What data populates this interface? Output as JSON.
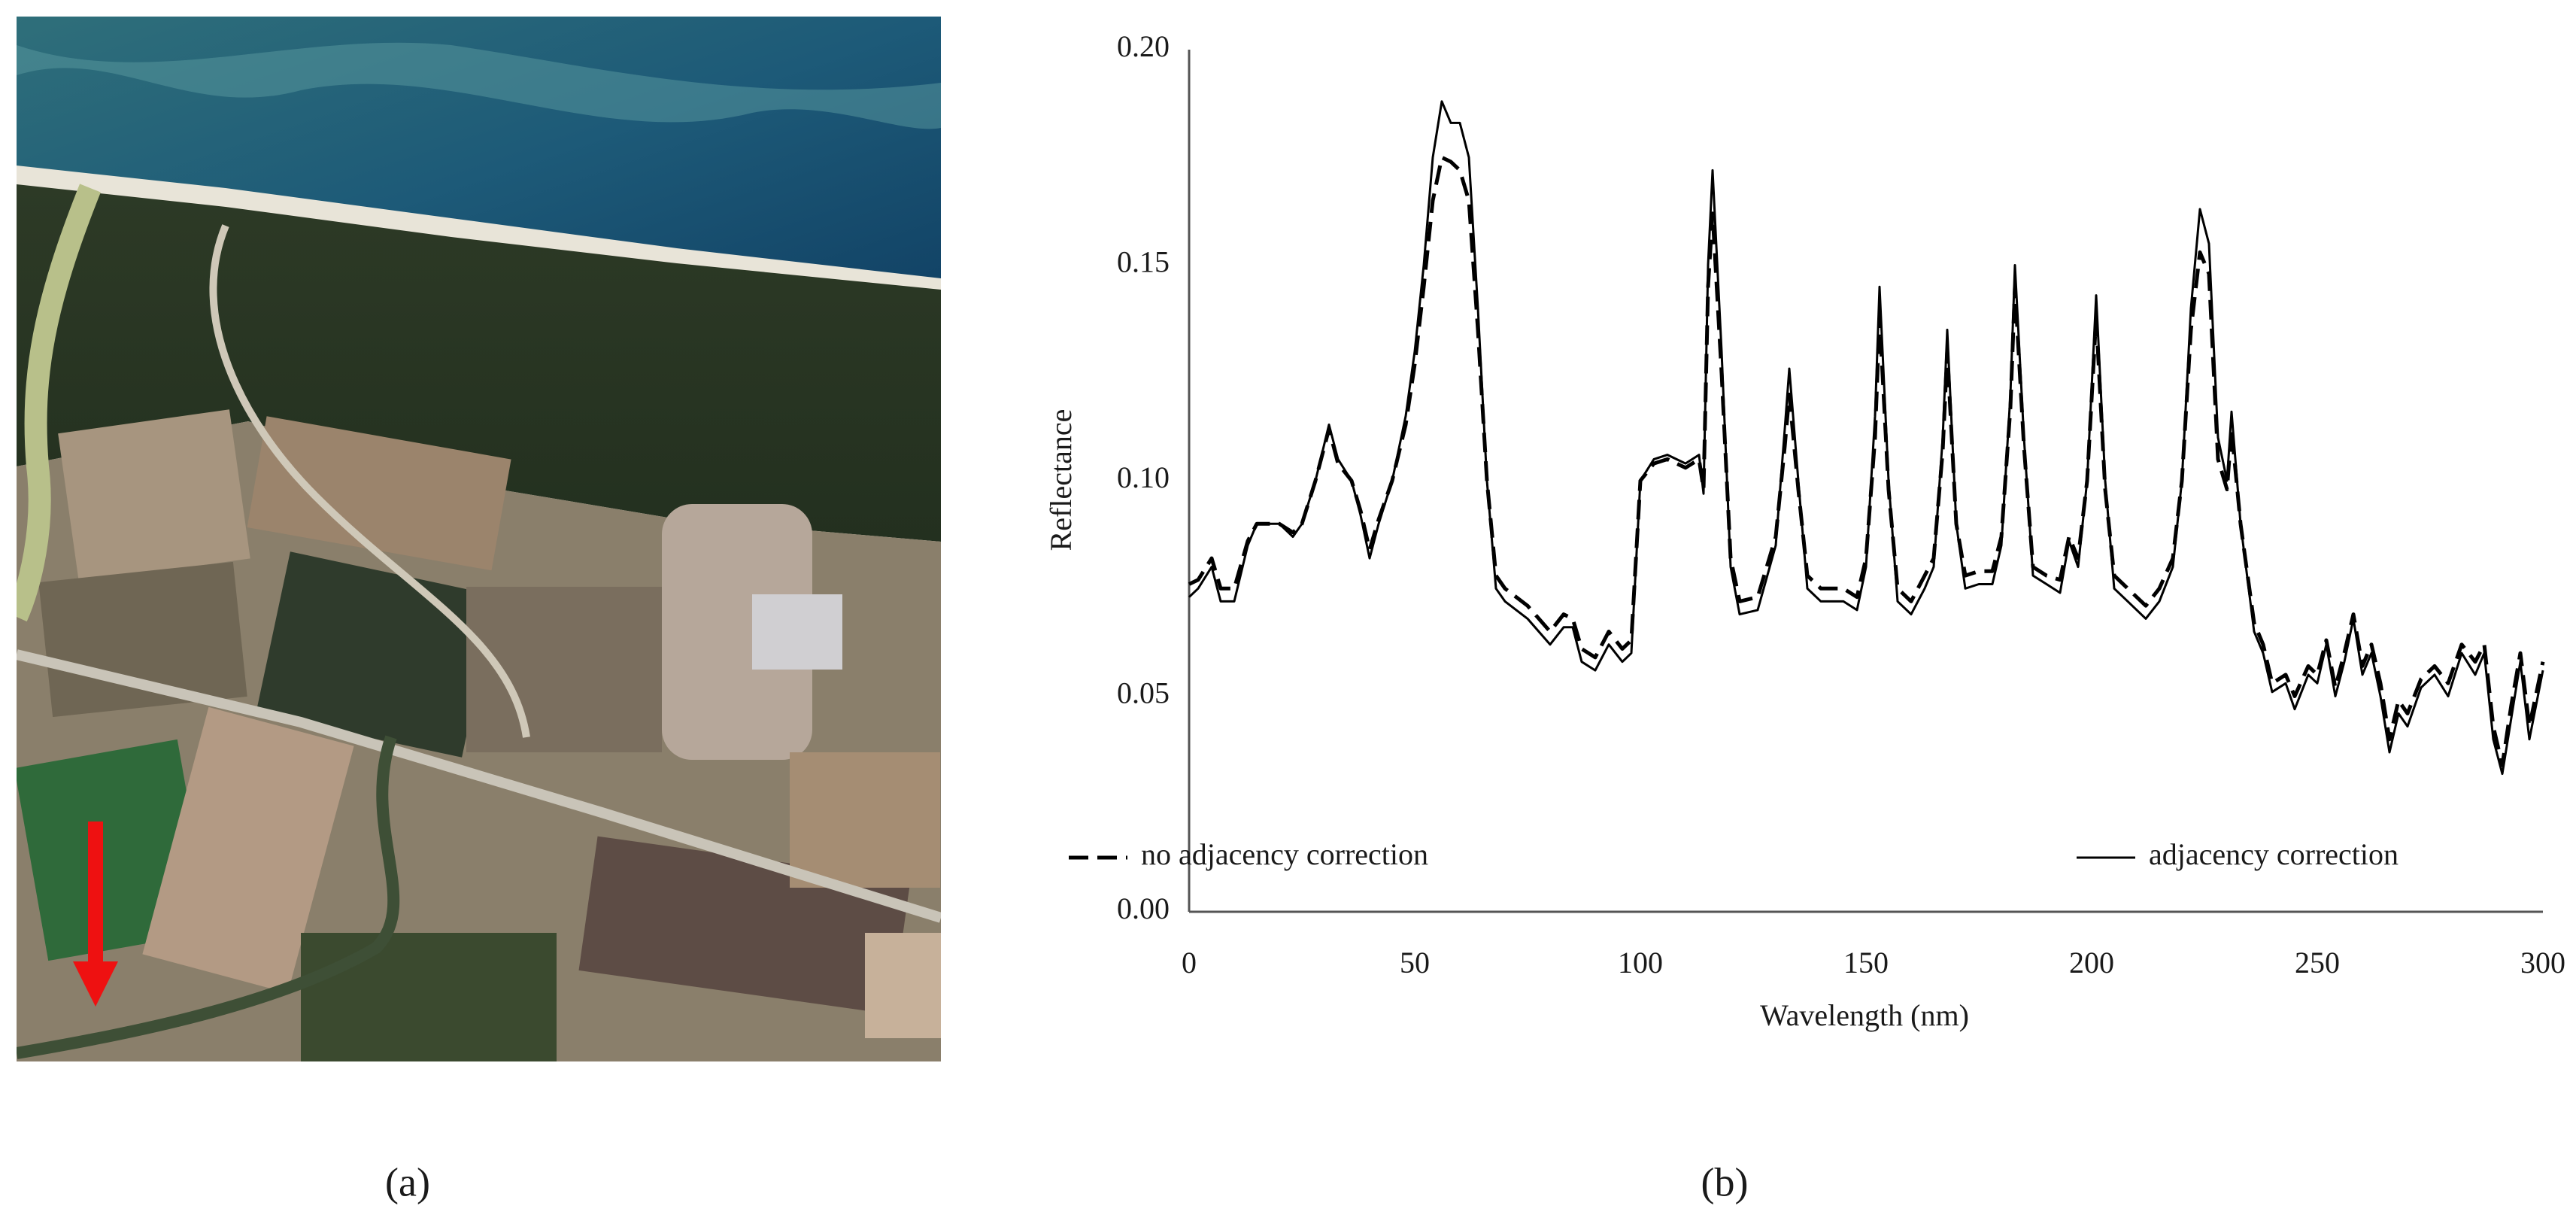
{
  "panel_labels": [
    "(a)",
    "(b)"
  ],
  "chart_data": {
    "type": "line",
    "x_label": "Wavelength (nm)",
    "y_label": "Reflectance",
    "xlim": [
      0,
      300
    ],
    "xticks": [
      0,
      50,
      100,
      150,
      200,
      250,
      300
    ],
    "ylim": [
      0,
      0.2
    ],
    "yticks": [
      {
        "value": 0,
        "label": "0.00"
      },
      {
        "value": 0.05,
        "label": "0.05"
      },
      {
        "value": 0.1,
        "label": "0.10"
      },
      {
        "value": 0.15,
        "label": "0.15"
      },
      {
        "value": 0.2,
        "label": "0.20"
      }
    ],
    "grid": false,
    "legend": "lower center",
    "x": [
      0,
      2,
      5,
      7,
      10,
      13,
      15,
      18,
      20,
      23,
      25,
      28,
      31,
      33,
      36,
      38,
      40,
      42,
      45,
      48,
      50,
      52,
      54,
      56,
      58,
      60,
      62,
      64,
      66,
      68,
      70,
      75,
      80,
      83,
      85,
      87,
      90,
      93,
      96,
      98,
      100,
      103,
      106,
      110,
      113,
      114,
      115,
      116,
      118,
      120,
      122,
      126,
      130,
      132,
      133,
      135,
      137,
      140,
      145,
      148,
      150,
      152,
      153,
      155,
      157,
      160,
      163,
      165,
      167,
      168,
      170,
      172,
      175,
      178,
      180,
      182,
      183,
      185,
      187,
      190,
      193,
      195,
      197,
      199,
      201,
      203,
      205,
      208,
      212,
      215,
      218,
      220,
      222,
      224,
      226,
      228,
      230,
      231,
      233,
      236,
      238,
      240,
      243,
      245,
      248,
      250,
      252,
      254,
      256,
      258,
      260,
      262,
      264,
      266,
      268,
      270,
      273,
      276,
      279,
      282,
      285,
      287,
      289,
      291,
      293,
      295,
      297,
      300
    ],
    "series": [
      {
        "name": "no adjacency correction",
        "color": "#000000",
        "line_style": "dashed",
        "values": [
          0.076,
          0.077,
          0.082,
          0.075,
          0.075,
          0.086,
          0.09,
          0.09,
          0.09,
          0.088,
          0.09,
          0.1,
          0.112,
          0.104,
          0.1,
          0.093,
          0.084,
          0.091,
          0.1,
          0.113,
          0.127,
          0.145,
          0.165,
          0.175,
          0.174,
          0.172,
          0.165,
          0.135,
          0.1,
          0.078,
          0.075,
          0.071,
          0.065,
          0.069,
          0.068,
          0.061,
          0.059,
          0.065,
          0.061,
          0.063,
          0.1,
          0.104,
          0.105,
          0.103,
          0.105,
          0.098,
          0.145,
          0.162,
          0.125,
          0.082,
          0.072,
          0.073,
          0.087,
          0.108,
          0.12,
          0.098,
          0.078,
          0.075,
          0.075,
          0.073,
          0.082,
          0.11,
          0.138,
          0.098,
          0.075,
          0.072,
          0.078,
          0.082,
          0.107,
          0.13,
          0.09,
          0.078,
          0.079,
          0.079,
          0.087,
          0.117,
          0.145,
          0.108,
          0.08,
          0.078,
          0.077,
          0.087,
          0.082,
          0.1,
          0.138,
          0.098,
          0.078,
          0.075,
          0.071,
          0.075,
          0.082,
          0.1,
          0.135,
          0.153,
          0.148,
          0.105,
          0.098,
          0.112,
          0.09,
          0.067,
          0.062,
          0.053,
          0.055,
          0.05,
          0.057,
          0.055,
          0.063,
          0.052,
          0.06,
          0.069,
          0.057,
          0.062,
          0.053,
          0.04,
          0.049,
          0.046,
          0.054,
          0.057,
          0.053,
          0.062,
          0.058,
          0.062,
          0.043,
          0.034,
          0.048,
          0.06,
          0.043,
          0.058
        ]
      },
      {
        "name": "adjacency correction",
        "color": "#000000",
        "line_style": "solid",
        "values": [
          0.073,
          0.075,
          0.08,
          0.072,
          0.072,
          0.085,
          0.09,
          0.09,
          0.09,
          0.087,
          0.09,
          0.1,
          0.113,
          0.105,
          0.1,
          0.092,
          0.082,
          0.09,
          0.1,
          0.115,
          0.13,
          0.15,
          0.175,
          0.188,
          0.183,
          0.183,
          0.175,
          0.14,
          0.1,
          0.075,
          0.072,
          0.068,
          0.062,
          0.066,
          0.066,
          0.058,
          0.056,
          0.062,
          0.058,
          0.06,
          0.1,
          0.105,
          0.106,
          0.104,
          0.106,
          0.097,
          0.15,
          0.172,
          0.13,
          0.08,
          0.069,
          0.07,
          0.085,
          0.112,
          0.126,
          0.1,
          0.075,
          0.072,
          0.072,
          0.07,
          0.08,
          0.115,
          0.145,
          0.1,
          0.072,
          0.069,
          0.075,
          0.08,
          0.11,
          0.135,
          0.09,
          0.075,
          0.076,
          0.076,
          0.085,
          0.12,
          0.15,
          0.11,
          0.078,
          0.076,
          0.074,
          0.086,
          0.08,
          0.1,
          0.143,
          0.1,
          0.075,
          0.072,
          0.068,
          0.072,
          0.08,
          0.1,
          0.14,
          0.163,
          0.155,
          0.11,
          0.1,
          0.116,
          0.09,
          0.065,
          0.06,
          0.051,
          0.053,
          0.047,
          0.055,
          0.053,
          0.062,
          0.05,
          0.058,
          0.068,
          0.055,
          0.06,
          0.05,
          0.037,
          0.046,
          0.043,
          0.052,
          0.055,
          0.05,
          0.06,
          0.055,
          0.06,
          0.04,
          0.032,
          0.045,
          0.058,
          0.04,
          0.056
        ]
      }
    ]
  }
}
